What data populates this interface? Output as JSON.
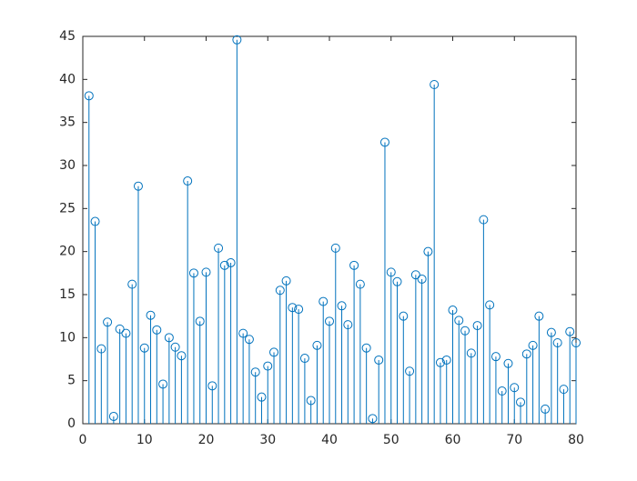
{
  "chart_data": {
    "type": "stem",
    "color": "#0072bd",
    "x": [
      1,
      2,
      3,
      4,
      5,
      6,
      7,
      8,
      9,
      10,
      11,
      12,
      13,
      14,
      15,
      16,
      17,
      18,
      19,
      20,
      21,
      22,
      23,
      24,
      25,
      26,
      27,
      28,
      29,
      30,
      31,
      32,
      33,
      34,
      35,
      36,
      37,
      38,
      39,
      40,
      41,
      42,
      43,
      44,
      45,
      46,
      47,
      48,
      49,
      50,
      51,
      52,
      53,
      54,
      55,
      56,
      57,
      58,
      59,
      60,
      61,
      62,
      63,
      64,
      65,
      66,
      67,
      68,
      69,
      70,
      71,
      72,
      73,
      74,
      75,
      76,
      77,
      78,
      79,
      80
    ],
    "values": [
      38.1,
      23.5,
      8.7,
      11.8,
      0.85,
      11.0,
      10.5,
      16.2,
      27.6,
      8.8,
      12.6,
      10.9,
      4.6,
      10.0,
      8.9,
      7.9,
      28.2,
      17.5,
      11.9,
      17.6,
      4.4,
      20.4,
      18.4,
      18.7,
      44.6,
      10.5,
      9.8,
      6.0,
      3.1,
      6.7,
      8.3,
      15.5,
      16.6,
      13.5,
      13.3,
      7.6,
      2.7,
      9.1,
      14.2,
      11.9,
      20.4,
      13.7,
      11.5,
      18.4,
      16.2,
      8.8,
      0.6,
      7.4,
      32.7,
      17.6,
      16.5,
      12.5,
      6.1,
      17.3,
      16.8,
      20.0,
      39.4,
      7.1,
      7.4,
      13.2,
      12.0,
      10.8,
      8.2,
      11.4,
      23.7,
      13.8,
      7.8,
      3.8,
      7.0,
      4.2,
      2.5,
      8.1,
      9.1,
      12.5,
      1.7,
      10.6,
      9.4,
      4.0,
      10.7,
      9.4
    ],
    "xlim": [
      0,
      80
    ],
    "xticks": [
      0,
      10,
      20,
      30,
      40,
      50,
      60,
      70,
      80
    ],
    "ylim": [
      0,
      45
    ],
    "yticks": [
      0,
      5,
      10,
      15,
      20,
      25,
      30,
      35,
      40,
      45
    ]
  }
}
